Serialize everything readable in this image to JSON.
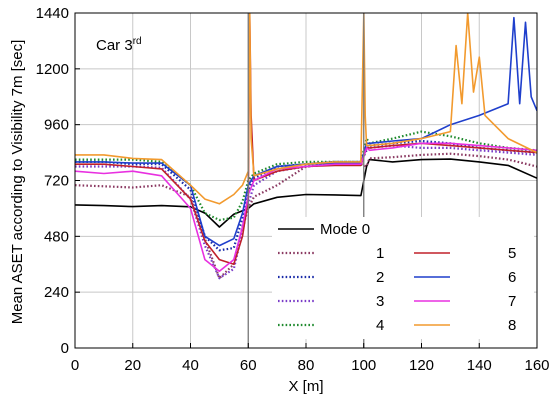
{
  "chart_data": {
    "type": "line",
    "annotation": {
      "text": "Car 3",
      "sup": "rd"
    },
    "xlabel": "X [m]",
    "ylabel": "Mean ASET according to Visibility 7m [sec]",
    "xlim": [
      0,
      160
    ],
    "ylim": [
      0,
      1440
    ],
    "xticks": [
      0,
      20,
      40,
      60,
      80,
      100,
      120,
      140,
      160
    ],
    "yticks": [
      0,
      240,
      480,
      720,
      960,
      1200,
      1440
    ],
    "vlines": [
      60,
      100
    ],
    "grid": true,
    "legend_position": "bottom-right",
    "series": [
      {
        "name": "Mode 0",
        "color": "#000000",
        "dash": "solid",
        "x": [
          0,
          10,
          20,
          30,
          40,
          45,
          50,
          55,
          58,
          60,
          62,
          70,
          80,
          90,
          99,
          101,
          102,
          110,
          120,
          130,
          140,
          150,
          160
        ],
        "y": [
          615,
          612,
          608,
          612,
          607,
          580,
          520,
          575,
          590,
          600,
          620,
          648,
          660,
          658,
          655,
          780,
          810,
          800,
          810,
          812,
          800,
          785,
          730
        ]
      },
      {
        "name": "1",
        "color": "#8B3A62",
        "dash": "dot",
        "x": [
          0,
          10,
          20,
          30,
          40,
          45,
          50,
          55,
          58,
          60,
          62,
          70,
          80,
          90,
          99,
          101,
          102,
          110,
          120,
          130,
          140,
          150,
          160
        ],
        "y": [
          700,
          695,
          690,
          700,
          650,
          470,
          300,
          360,
          520,
          600,
          650,
          700,
          780,
          790,
          790,
          780,
          815,
          820,
          830,
          835,
          825,
          810,
          780
        ]
      },
      {
        "name": "2",
        "color": "#1A2BA8",
        "dash": "dot",
        "x": [
          0,
          10,
          20,
          30,
          40,
          45,
          50,
          55,
          58,
          60,
          62,
          70,
          80,
          90,
          99,
          101,
          102,
          110,
          120,
          130,
          140,
          150,
          160
        ],
        "y": [
          800,
          800,
          790,
          790,
          680,
          480,
          420,
          430,
          560,
          680,
          730,
          780,
          790,
          800,
          800,
          850,
          870,
          880,
          890,
          880,
          860,
          850,
          840
        ]
      },
      {
        "name": "3",
        "color": "#7A3CC8",
        "dash": "dot",
        "x": [
          0,
          10,
          20,
          30,
          40,
          45,
          50,
          55,
          58,
          60,
          62,
          70,
          80,
          90,
          99,
          101,
          102,
          110,
          120,
          130,
          140,
          150,
          160
        ],
        "y": [
          780,
          780,
          780,
          775,
          640,
          440,
          300,
          340,
          500,
          620,
          700,
          760,
          780,
          790,
          790,
          880,
          860,
          870,
          860,
          860,
          850,
          840,
          830
        ]
      },
      {
        "name": "4",
        "color": "#1F8A2E",
        "dash": "dot",
        "x": [
          0,
          10,
          20,
          30,
          40,
          45,
          50,
          55,
          58,
          60,
          62,
          70,
          80,
          90,
          99,
          101,
          102,
          110,
          120,
          130,
          140,
          150,
          160
        ],
        "y": [
          810,
          810,
          810,
          800,
          700,
          580,
          550,
          560,
          630,
          720,
          750,
          790,
          800,
          800,
          800,
          900,
          880,
          900,
          930,
          910,
          880,
          860,
          850
        ]
      },
      {
        "name": "5",
        "color": "#C0202A",
        "dash": "solid",
        "x": [
          0,
          10,
          20,
          30,
          40,
          45,
          50,
          55,
          58,
          60,
          60.5,
          61,
          62,
          70,
          80,
          90,
          99,
          101,
          102,
          110,
          120,
          130,
          140,
          150,
          160
        ],
        "y": [
          790,
          790,
          780,
          770,
          640,
          460,
          380,
          360,
          480,
          640,
          1440,
          1000,
          720,
          760,
          780,
          785,
          785,
          860,
          860,
          870,
          880,
          870,
          860,
          850,
          840
        ]
      },
      {
        "name": "6",
        "color": "#1F3FCC",
        "dash": "solid",
        "x": [
          0,
          10,
          20,
          30,
          40,
          45,
          50,
          55,
          58,
          60,
          62,
          70,
          80,
          90,
          99,
          101,
          102,
          110,
          120,
          130,
          140,
          150,
          152,
          154,
          156,
          158,
          160
        ],
        "y": [
          800,
          800,
          795,
          795,
          700,
          480,
          440,
          470,
          580,
          700,
          740,
          780,
          790,
          795,
          795,
          880,
          880,
          890,
          900,
          960,
          1000,
          1050,
          1420,
          1050,
          1400,
          1080,
          1020
        ]
      },
      {
        "name": "7",
        "color": "#E830E0",
        "dash": "solid",
        "x": [
          0,
          10,
          20,
          30,
          40,
          45,
          50,
          55,
          58,
          60,
          62,
          70,
          80,
          90,
          99,
          101,
          102,
          110,
          120,
          130,
          140,
          150,
          160
        ],
        "y": [
          760,
          750,
          760,
          740,
          600,
          380,
          330,
          380,
          520,
          660,
          720,
          770,
          780,
          790,
          790,
          860,
          850,
          860,
          880,
          880,
          870,
          860,
          850
        ]
      },
      {
        "name": "8",
        "color": "#F29A2E",
        "dash": "solid",
        "x": [
          0,
          10,
          20,
          30,
          40,
          45,
          50,
          55,
          58,
          60,
          60.5,
          61,
          62,
          70,
          80,
          90,
          99,
          100,
          100.5,
          101,
          102,
          110,
          120,
          130,
          132,
          134,
          136,
          138,
          140,
          142,
          150,
          160
        ],
        "y": [
          830,
          830,
          815,
          810,
          700,
          640,
          620,
          660,
          700,
          760,
          1440,
          900,
          740,
          770,
          790,
          800,
          800,
          1440,
          1000,
          870,
          870,
          880,
          900,
          930,
          1300,
          1050,
          1440,
          1100,
          1250,
          1000,
          900,
          840
        ]
      }
    ]
  }
}
